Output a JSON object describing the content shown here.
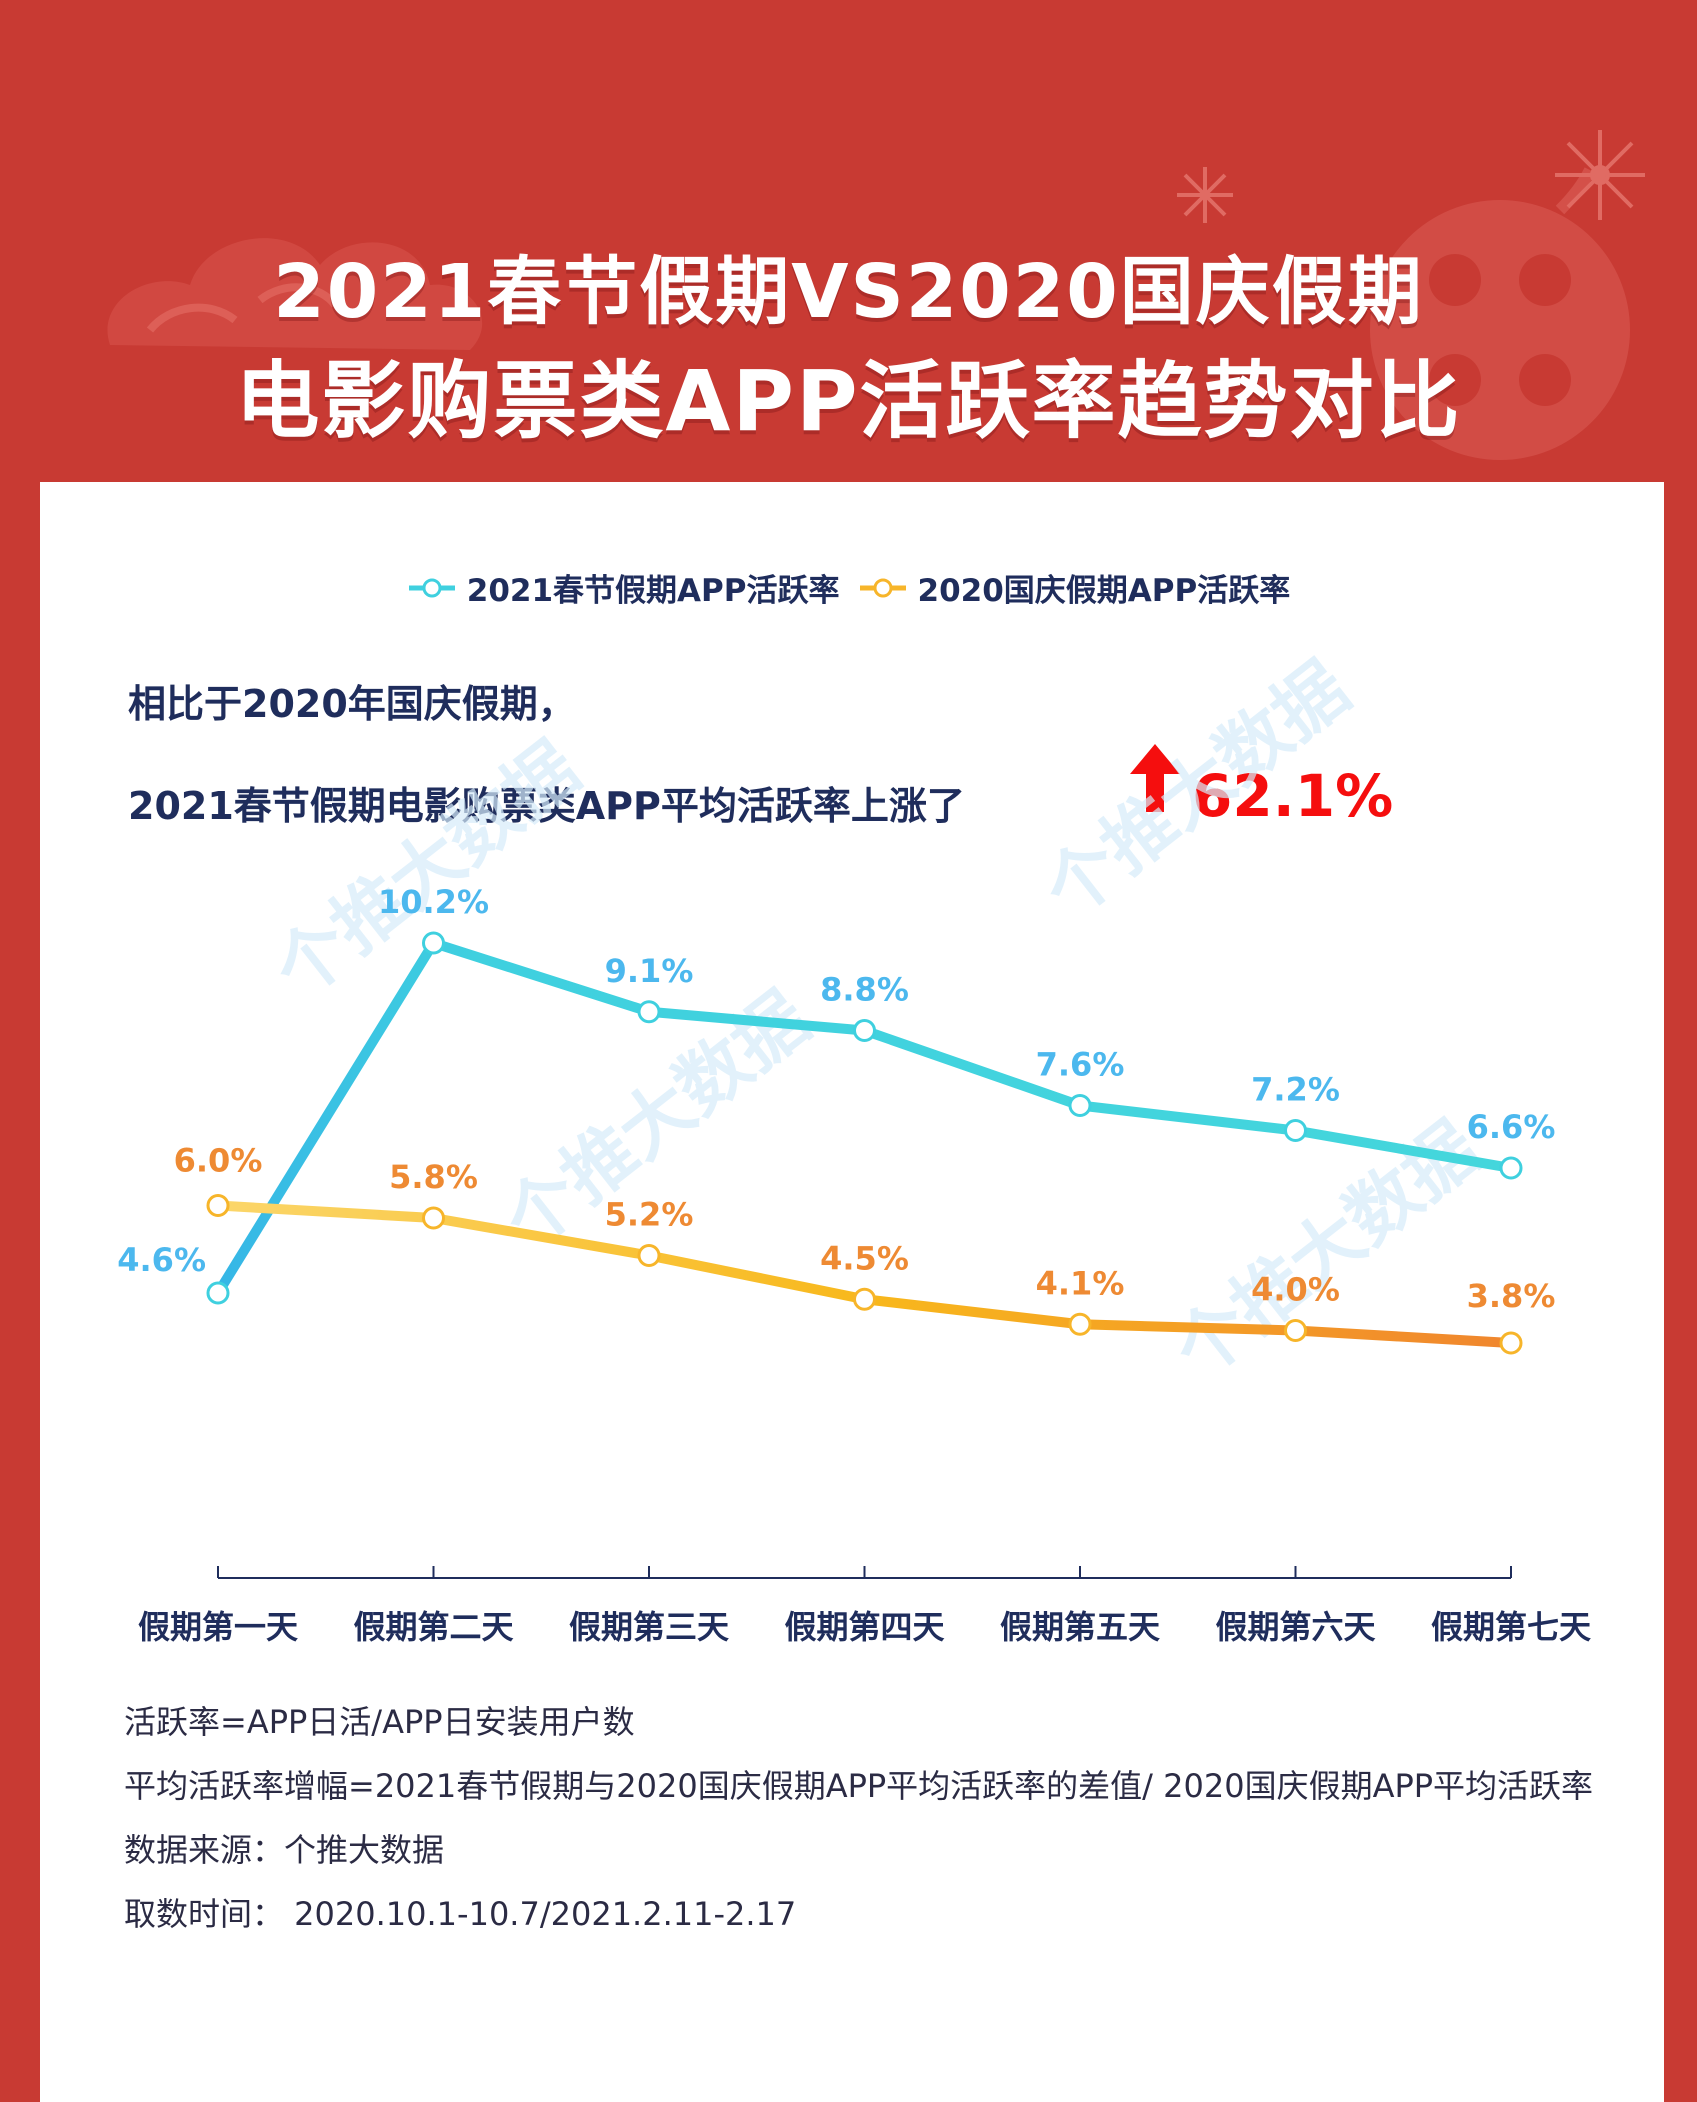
{
  "title": {
    "line1": "2021春节假期VS2020国庆假期",
    "line2": "电影购票类APP活跃率趋势对比"
  },
  "headline": {
    "line1": "相比于2020年国庆假期，",
    "line2": "2021春节假期电影购票类APP平均活跃率上涨了",
    "highlight": "62.1%"
  },
  "watermark": "个推大数据",
  "colors": {
    "background": "#c83a33",
    "series_2021": "#3fd0df",
    "series_2021_label": "#4cb8ee",
    "series_2020": "#f7b52a",
    "series_2020_label": "#ee8a33",
    "highlight": "#f50e0e",
    "text": "#1f2d5c"
  },
  "chart_data": {
    "type": "line",
    "categories": [
      "假期第一天",
      "假期第二天",
      "假期第三天",
      "假期第四天",
      "假期第五天",
      "假期第六天",
      "假期第七天"
    ],
    "series": [
      {
        "name": "2021春节假期APP活跃率",
        "values": [
          4.6,
          10.2,
          9.1,
          8.8,
          7.6,
          7.2,
          6.6
        ],
        "labels": [
          "4.6%",
          "10.2%",
          "9.1%",
          "8.8%",
          "7.6%",
          "7.2%",
          "6.6%"
        ],
        "color": "#3fd0df"
      },
      {
        "name": "2020国庆假期APP活跃率",
        "values": [
          6.0,
          5.8,
          5.2,
          4.5,
          4.1,
          4.0,
          3.8
        ],
        "labels": [
          "6.0%",
          "5.8%",
          "5.2%",
          "4.5%",
          "4.1%",
          "4.0%",
          "3.8%"
        ],
        "color": "#f7b52a"
      }
    ],
    "unit": "%",
    "legend": "top-center",
    "grid": false,
    "y_axis_visible": false
  },
  "notes": [
    "活跃率=APP日活/APP日安装用户数",
    "平均活跃率增幅=2021春节假期与2020国庆假期APP平均活跃率的差值/ 2020国庆假期APP平均活跃率",
    "数据来源：个推大数据",
    "取数时间： 2020.10.1-10.7/2021.2.11-2.17"
  ]
}
